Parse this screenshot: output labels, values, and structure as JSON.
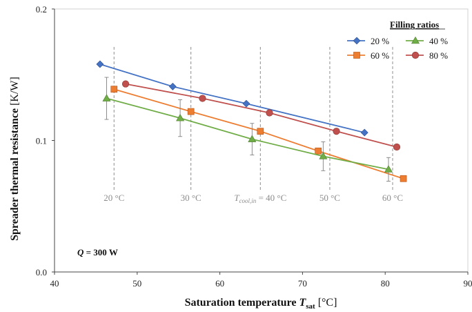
{
  "chart_data": {
    "type": "line",
    "xlabel": "Saturation temperature",
    "xlabel_symbol": "T",
    "xlabel_sub": "sat",
    "xlabel_unit": "[°C]",
    "ylabel": "Spreader thermal resistance",
    "ylabel_unit": "[K/W]",
    "xlim": [
      40,
      90
    ],
    "ylim": [
      0.0,
      0.2
    ],
    "xticks": [
      40,
      50,
      60,
      70,
      80,
      90
    ],
    "yticks": [
      0.0,
      0.1,
      0.2
    ],
    "ytick_labels": [
      "0.0",
      "0.1",
      "0.2"
    ],
    "grid": false,
    "legend": {
      "title": "Filling ratios",
      "placement": "top-right",
      "entries": [
        "20 %",
        "40 %",
        "60 %",
        "80 %"
      ]
    },
    "series": [
      {
        "name": "20 %",
        "color": "#4472C4",
        "marker": "diamond",
        "x": [
          45.5,
          54.3,
          63.2,
          77.5
        ],
        "y": [
          0.158,
          0.141,
          0.128,
          0.106
        ],
        "yerr": null
      },
      {
        "name": "60 %",
        "color": "#ED7D31",
        "marker": "square",
        "x": [
          47.2,
          56.5,
          64.9,
          71.9,
          82.2
        ],
        "y": [
          0.139,
          0.122,
          0.107,
          0.092,
          0.071
        ],
        "yerr": null
      },
      {
        "name": "40 %",
        "color": "#70AD47",
        "marker": "triangle",
        "x": [
          46.3,
          55.2,
          63.9,
          72.5,
          80.4
        ],
        "y": [
          0.132,
          0.117,
          0.101,
          0.088,
          0.078
        ],
        "yerr": [
          0.016,
          0.014,
          0.012,
          0.011,
          0.009
        ]
      },
      {
        "name": "80 %",
        "color": "#C0504D",
        "marker": "circle",
        "x": [
          48.6,
          57.9,
          66.0,
          74.1,
          81.4
        ],
        "y": [
          0.143,
          0.132,
          0.121,
          0.107,
          0.095
        ],
        "yerr": null
      }
    ],
    "vlines": [
      {
        "x": 47.2,
        "label": "20 °C"
      },
      {
        "x": 56.5,
        "label": "30 °C"
      },
      {
        "x": 64.9,
        "label": "= 40 °C",
        "prefix_symbol": "T",
        "prefix_sub": "cool,in"
      },
      {
        "x": 73.3,
        "label": "50 °C"
      },
      {
        "x": 80.9,
        "label": "60 °C"
      }
    ],
    "annotation": {
      "symbol": "Q",
      "text": " = 300 W"
    }
  }
}
